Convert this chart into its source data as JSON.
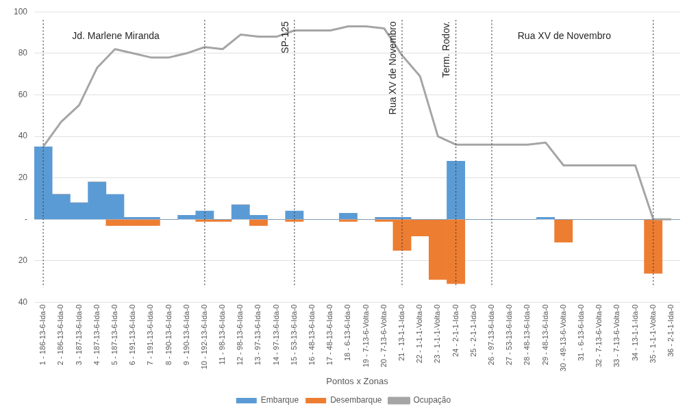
{
  "chart_data": {
    "type": "bar",
    "xlabel": "Pontos x Zonas",
    "categories": [
      "1 - 186-13-6-Ida-0",
      "2 - 186-13-6-Ida-0",
      "3 - 187-13-6-Ida-0",
      "4 - 187-13-6-Ida-0",
      "5 - 187-13-6-Ida-0",
      "6 - 191-13-6-Ida-0",
      "7 - 191-13-6-Ida-0",
      "8 - 190-13-6-Ida-0",
      "9 - 190-13-6-Ida-0",
      "10 - 192-13-6-Ida-0",
      "11 - 98-13-6-Ida-0",
      "12 - 98-13-6-Ida-0",
      "13 - 97-13-6-Ida-0",
      "14 - 97-13-6-Ida-0",
      "15 - 53-13-6-Ida-0",
      "16 - 48-13-6-Ida-0",
      "17 - 48-13-6-Ida-0",
      "18 - 6-13-6-Ida-0",
      "19 - 7-13-6-Volta-0",
      "20 - 7-13-6-Volta-0",
      "21 - 13-1-1-Ida-0",
      "22 - 1-1-1-Volta-0",
      "23 - 1-1-1-Volta-0",
      "24 - 2-1-1-Ida-0",
      "25 - 2-1-1-Ida-0",
      "26 - 97-13-6-Ida-0",
      "27 - 53-13-6-Ida-0",
      "28 - 48-13-6-Ida-0",
      "29 - 48-13-6-Ida-0",
      "30 - 49-13-6-Volta-0",
      "31 - 6-13-6-Ida-0",
      "32 - 7-13-6-Volta-0",
      "33 - 7-13-6-Volta-0",
      "34 - 13-1-1-Ida-0",
      "35 - 1-1-1-Volta-0",
      "36 - 2-1-1-Ida-0"
    ],
    "stacked": true,
    "series": [
      {
        "name": "Embarque",
        "color": "#5b9bd5",
        "values": [
          35,
          12,
          8,
          18,
          12,
          1,
          1,
          0,
          2,
          4,
          0,
          7,
          2,
          0,
          4,
          0,
          0,
          3,
          0,
          1,
          1,
          0,
          0,
          28,
          0,
          0,
          0,
          0,
          1,
          0,
          0,
          0,
          0,
          0,
          0,
          0
        ]
      },
      {
        "name": "Desembarque",
        "color": "#ed7d31",
        "values": [
          0,
          0,
          0,
          0,
          -3,
          -3,
          -3,
          0,
          0,
          -1,
          -1,
          0,
          -3,
          0,
          -1,
          0,
          0,
          -1,
          0,
          -1,
          -15,
          -8,
          -29,
          -31,
          0,
          0,
          0,
          0,
          0,
          -11,
          0,
          0,
          0,
          0,
          -26,
          0
        ]
      },
      {
        "name": "Ocupação",
        "type": "line",
        "color": "#a5a5a5",
        "values": [
          35,
          47,
          55,
          73,
          82,
          80,
          78,
          78,
          80,
          83,
          82,
          89,
          88,
          88,
          91,
          91,
          91,
          93,
          93,
          92,
          79,
          69,
          40,
          36,
          36,
          36,
          36,
          36,
          37,
          26,
          26,
          26,
          26,
          26,
          0,
          0
        ]
      }
    ],
    "ylim": [
      -40,
      100
    ],
    "yticks": [
      {
        "value": -40,
        "label": "40"
      },
      {
        "value": -20,
        "label": "20"
      },
      {
        "value": 0,
        "label": "-"
      },
      20,
      40,
      60,
      80,
      100
    ],
    "grid": "y",
    "legend": "bottom",
    "marker": "none",
    "line_style": "solid",
    "ref_lines": [
      {
        "axis": "x",
        "value": "1 - 186-13-6-Ida-0",
        "line_style": "dotted",
        "color": "#404040"
      },
      {
        "axis": "x",
        "value": "10 - 192-13-6-Ida-0",
        "line_style": "dotted",
        "color": "#404040"
      },
      {
        "axis": "x",
        "value": "15 - 53-13-6-Ida-0",
        "label": "SP-125",
        "line_style": "dotted",
        "color": "#404040"
      },
      {
        "axis": "x",
        "value": "21 - 13-1-1-Ida-0",
        "label": "Rua XV de Novembro",
        "line_style": "dotted",
        "color": "#404040"
      },
      {
        "axis": "x",
        "value": "24 - 2-1-1-Ida-0",
        "label": "Term. Rodov.",
        "line_style": "dotted",
        "color": "#404040"
      },
      {
        "axis": "x",
        "value": "26 - 97-13-6-Ida-0",
        "line_style": "dotted",
        "color": "#404040"
      },
      {
        "axis": "x",
        "value": "35 - 1-1-1-Volta-0",
        "line_style": "dotted",
        "color": "#404040"
      }
    ],
    "annotations": [
      "Jd. Marlene Miranda",
      "Rua XV de Novembro"
    ]
  }
}
